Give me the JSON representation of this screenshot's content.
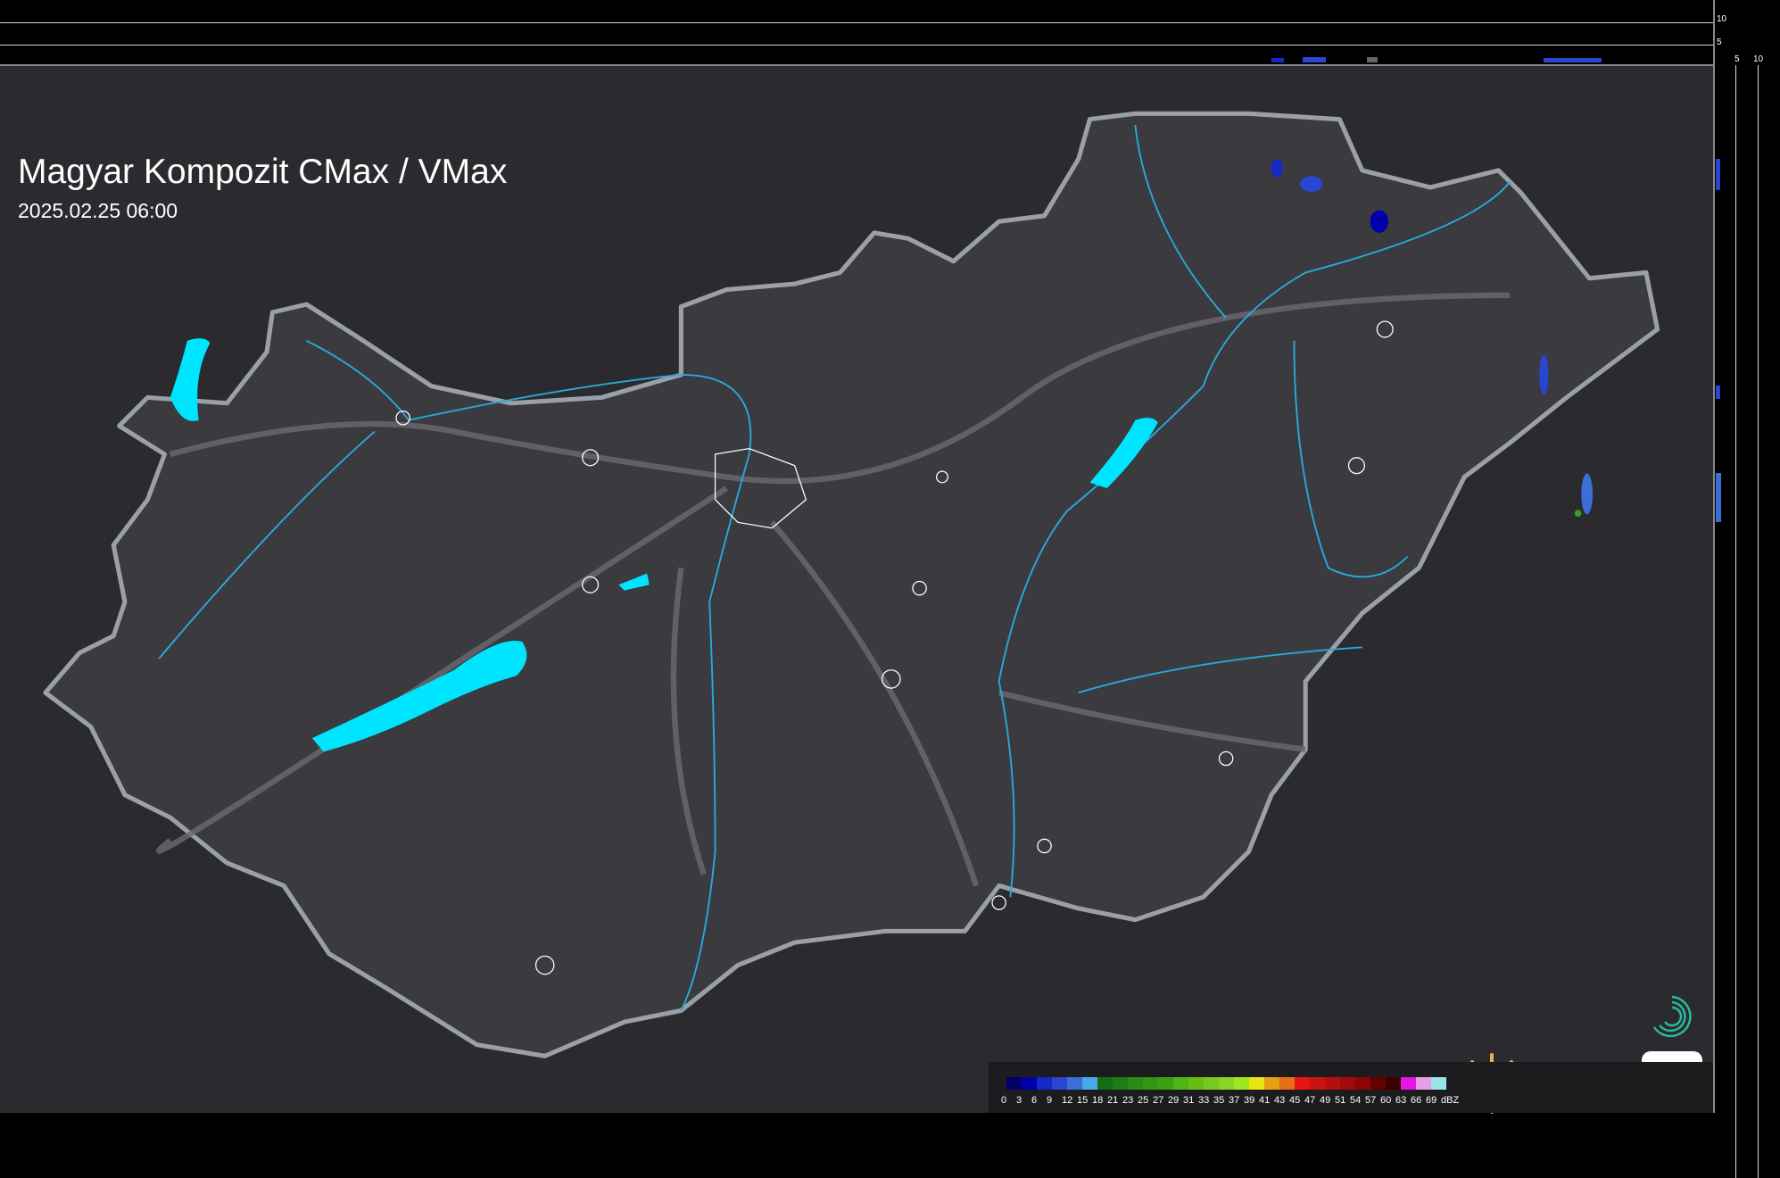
{
  "header": {
    "title": "Magyar Kompozit CMax / VMax",
    "timestamp": "2025.02.25 06:00"
  },
  "profile_axes": {
    "right_ticks": [
      "10",
      "5"
    ],
    "bottom_ticks": [
      "5",
      "10"
    ]
  },
  "colors": {
    "background": "#2b2b2f",
    "border": "#9aa0a8",
    "lakes": "#00e5ff",
    "rivers": "#2aa8d8",
    "cities": "#ffffff"
  },
  "legend": {
    "unit": "dBZ",
    "labels": [
      "0",
      "3",
      "6",
      "9",
      "12",
      "15",
      "18",
      "21",
      "23",
      "25",
      "27",
      "29",
      "31",
      "33",
      "35",
      "37",
      "39",
      "41",
      "43",
      "45",
      "47",
      "49",
      "51",
      "54",
      "57",
      "60",
      "63",
      "66",
      "69"
    ],
    "colors": [
      "#000066",
      "#0000aa",
      "#1428c8",
      "#2846d2",
      "#3c6ed7",
      "#46aae6",
      "#146e14",
      "#1e7d14",
      "#288c14",
      "#329614",
      "#3ca014",
      "#50b414",
      "#64be14",
      "#78c81e",
      "#8cd228",
      "#a0e61e",
      "#e6e614",
      "#e6a014",
      "#e66e14",
      "#e61414",
      "#c81414",
      "#b40f0f",
      "#a00a0a",
      "#8c0505",
      "#640000",
      "#3c0000",
      "#e614e6",
      "#e6a0e6",
      "#96e6e6"
    ]
  },
  "logo": {
    "brand": "metnet"
  }
}
